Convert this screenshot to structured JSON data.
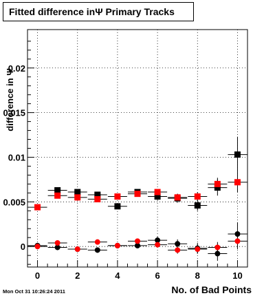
{
  "chart_data": {
    "type": "scatter",
    "title": "Fitted difference inΨ  Primary Tracks",
    "xlabel": "No. of Bad Points",
    "ylabel": "difference in  Ψ",
    "xlim": [
      -0.5,
      10.5
    ],
    "ylim": [
      -0.0023,
      0.0243
    ],
    "grid": true,
    "x_ticks": [
      0,
      2,
      4,
      6,
      8,
      10
    ],
    "y_ticks": [
      {
        "value": 0,
        "label": "0"
      },
      {
        "value": 0.005,
        "label": "0.005"
      },
      {
        "value": 0.01,
        "label": "0.01"
      },
      {
        "value": 0.015,
        "label": "0.015"
      },
      {
        "value": 0.02,
        "label": "0.02"
      }
    ],
    "series": [
      {
        "marker": "square",
        "color": "#000000",
        "x": [
          1,
          2,
          3,
          4,
          5,
          6,
          7,
          8,
          9,
          10
        ],
        "y": [
          0.0063,
          0.0061,
          0.0058,
          0.0045,
          0.0061,
          0.0056,
          0.0054,
          0.0046,
          0.0066,
          0.0103
        ],
        "yerr": [
          0.0003,
          0.0003,
          0.0003,
          0.0003,
          0.0003,
          0.0004,
          0.0005,
          0.0006,
          0.0009,
          0.002
        ]
      },
      {
        "marker": "square",
        "color": "#ff0000",
        "x": [
          0,
          1,
          2,
          3,
          4,
          5,
          6,
          7,
          8,
          9,
          10
        ],
        "y": [
          0.0044,
          0.0057,
          0.0055,
          0.0053,
          0.0056,
          0.0059,
          0.0061,
          0.0055,
          0.0056,
          0.007,
          0.0072
        ],
        "yerr": [
          0,
          0.0002,
          0.0002,
          0.0002,
          0.0002,
          0.0003,
          0.0003,
          0.0004,
          0.0005,
          0.0007,
          0.0011
        ]
      },
      {
        "marker": "circle",
        "color": "#000000",
        "x": [
          0,
          1,
          2,
          3,
          4,
          5,
          6,
          7,
          8,
          9,
          10
        ],
        "y": [
          0.0001,
          -0.0001,
          -0.0003,
          -0.0004,
          0.0001,
          0.0001,
          0.0007,
          0.0003,
          -0.0002,
          -0.0008,
          0.0014
        ],
        "yerr": [
          0,
          0.0003,
          0.0003,
          0.0003,
          0.0003,
          0.0003,
          0.0004,
          0.0005,
          0.0006,
          0.0008,
          0.0013
        ]
      },
      {
        "marker": "circle",
        "color": "#ff0000",
        "x": [
          0,
          1,
          2,
          3,
          4,
          5,
          6,
          7,
          8,
          9,
          10
        ],
        "y": [
          0.0,
          0.0004,
          -0.0003,
          0.0005,
          0.0001,
          0.0006,
          0.0002,
          -0.0004,
          -0.0003,
          -0.0001,
          0.0006
        ],
        "yerr": [
          0,
          0.0002,
          0.0002,
          0.0002,
          0.0002,
          0.0002,
          0.0003,
          0.0004,
          0.0005,
          0.0006,
          0.0009
        ]
      }
    ]
  },
  "footer": {
    "timestamp": "Mon Oct 31 10:26:24 2011"
  }
}
